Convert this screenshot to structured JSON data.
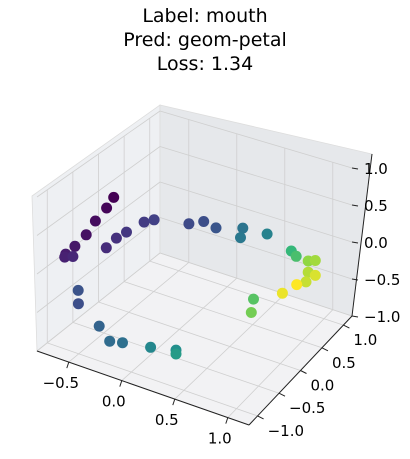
{
  "title_lines": [
    "Label: mouth",
    "Pred: geom-petal",
    "Loss: 1.34"
  ],
  "chart_data": {
    "type": "scatter",
    "projection": "3d",
    "title": "Label: mouth\nPred: geom-petal\nLoss: 1.34",
    "xlabel": "",
    "ylabel": "",
    "zlabel": "",
    "xlim": [
      -0.8,
      1.2
    ],
    "ylim": [
      -1.2,
      1.2
    ],
    "zlim": [
      -1.0,
      1.0
    ],
    "x_ticks": [
      "−0.5",
      "0.0",
      "0.5",
      "1.0"
    ],
    "y_ticks": [
      "−1.0",
      "−0.5",
      "0.0",
      "0.5",
      "1.0"
    ],
    "z_ticks": [
      "−1.0",
      "−0.5",
      "0.0",
      "0.5",
      "1.0"
    ],
    "grid": true,
    "colormap": "viridis",
    "points": [
      {
        "x": -0.6,
        "y": -0.1,
        "z": 0.55,
        "c": 0.0
      },
      {
        "x": -0.62,
        "y": -0.2,
        "z": 0.45,
        "c": 0.02
      },
      {
        "x": -0.68,
        "y": -0.3,
        "z": 0.3,
        "c": 0.04
      },
      {
        "x": -0.72,
        "y": -0.4,
        "z": 0.15,
        "c": 0.06
      },
      {
        "x": -0.78,
        "y": -0.5,
        "z": 0.02,
        "c": 0.08
      },
      {
        "x": -0.82,
        "y": -0.6,
        "z": -0.05,
        "c": 0.1
      },
      {
        "x": -0.82,
        "y": -0.62,
        "z": -0.08,
        "c": 0.12
      },
      {
        "x": -0.75,
        "y": -0.6,
        "z": -0.05,
        "c": 0.14
      },
      {
        "x": -0.5,
        "y": -0.45,
        "z": 0.1,
        "c": 0.16
      },
      {
        "x": -0.45,
        "y": -0.35,
        "z": 0.2,
        "c": 0.18
      },
      {
        "x": -0.4,
        "y": -0.25,
        "z": 0.25,
        "c": 0.2
      },
      {
        "x": -0.3,
        "y": -0.1,
        "z": 0.35,
        "c": 0.22
      },
      {
        "x": -0.25,
        "y": 0.0,
        "z": 0.35,
        "c": 0.24
      },
      {
        "x": 0.0,
        "y": 0.2,
        "z": 0.3,
        "c": 0.28
      },
      {
        "x": 0.1,
        "y": 0.3,
        "z": 0.32,
        "c": 0.3
      },
      {
        "x": 0.2,
        "y": 0.35,
        "z": 0.25,
        "c": 0.33
      },
      {
        "x": -0.6,
        "y": -0.8,
        "z": -0.5,
        "c": 0.3
      },
      {
        "x": -0.65,
        "y": -0.7,
        "z": -0.4,
        "c": 0.32
      },
      {
        "x": -0.4,
        "y": -0.8,
        "z": -0.7,
        "c": 0.4
      },
      {
        "x": -0.3,
        "y": -0.8,
        "z": -0.85,
        "c": 0.44
      },
      {
        "x": -0.2,
        "y": -0.75,
        "z": -0.85,
        "c": 0.46
      },
      {
        "x": 0.4,
        "y": 0.5,
        "z": 0.25,
        "c": 0.48
      },
      {
        "x": 0.4,
        "y": 0.45,
        "z": 0.15,
        "c": 0.5
      },
      {
        "x": 0.6,
        "y": 0.6,
        "z": 0.2,
        "c": 0.55
      },
      {
        "x": 0.0,
        "y": -0.6,
        "z": -0.9,
        "c": 0.58
      },
      {
        "x": 0.2,
        "y": -0.5,
        "z": -0.9,
        "c": 0.62
      },
      {
        "x": 0.2,
        "y": -0.5,
        "z": -0.95,
        "c": 0.66
      },
      {
        "x": 0.8,
        "y": 0.7,
        "z": 0.0,
        "c": 0.75
      },
      {
        "x": 0.85,
        "y": 0.7,
        "z": -0.05,
        "c": 0.78
      },
      {
        "x": 0.6,
        "y": 0.3,
        "z": -0.5,
        "c": 0.8
      },
      {
        "x": 0.6,
        "y": 0.25,
        "z": -0.65,
        "c": 0.84
      },
      {
        "x": 0.95,
        "y": 0.75,
        "z": -0.1,
        "c": 0.88
      },
      {
        "x": 1.0,
        "y": 0.8,
        "z": -0.1,
        "c": 0.9
      },
      {
        "x": 0.95,
        "y": 0.75,
        "z": -0.25,
        "c": 0.92
      },
      {
        "x": 0.95,
        "y": 0.7,
        "z": -0.35,
        "c": 0.94
      },
      {
        "x": 1.0,
        "y": 0.8,
        "z": -0.3,
        "c": 0.96
      },
      {
        "x": 0.8,
        "y": 0.5,
        "z": -0.45,
        "c": 0.98
      },
      {
        "x": 0.9,
        "y": 0.6,
        "z": -0.35,
        "c": 1.0
      }
    ]
  },
  "colors": {
    "pane_left": "#eef0f3",
    "pane_right": "#e6e8eb",
    "pane_floor": "#f2f2f4",
    "grid": "#cfcfcf",
    "axis": "#222222"
  }
}
